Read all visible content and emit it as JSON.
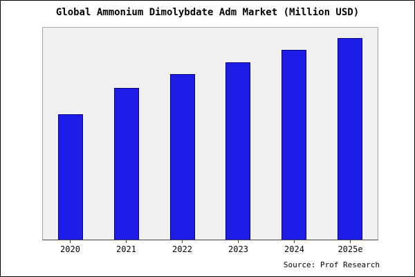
{
  "title": "Global Ammonium Dimolybdate Adm Market (Million USD)",
  "source": "Source: Prof Research",
  "colors": {
    "bar_fill": "#1c1ce6",
    "bar_border": "#000080",
    "plot_bg": "#f0f0f0",
    "plot_border": "#aaaaaa",
    "page_bg": "#ffffff",
    "frame_border": "#000000"
  },
  "chart_data": {
    "type": "bar",
    "title": "Global Ammonium Dimolybdate Adm Market (Million USD)",
    "categories": [
      "2020",
      "2021",
      "2022",
      "2023",
      "2024",
      "2025e"
    ],
    "values": [
      62,
      75,
      82,
      88,
      94,
      100
    ],
    "xlabel": "",
    "ylabel": "",
    "ylim": [
      0,
      105
    ],
    "grid": false,
    "legend": false,
    "y_tick_labels_shown": false
  }
}
